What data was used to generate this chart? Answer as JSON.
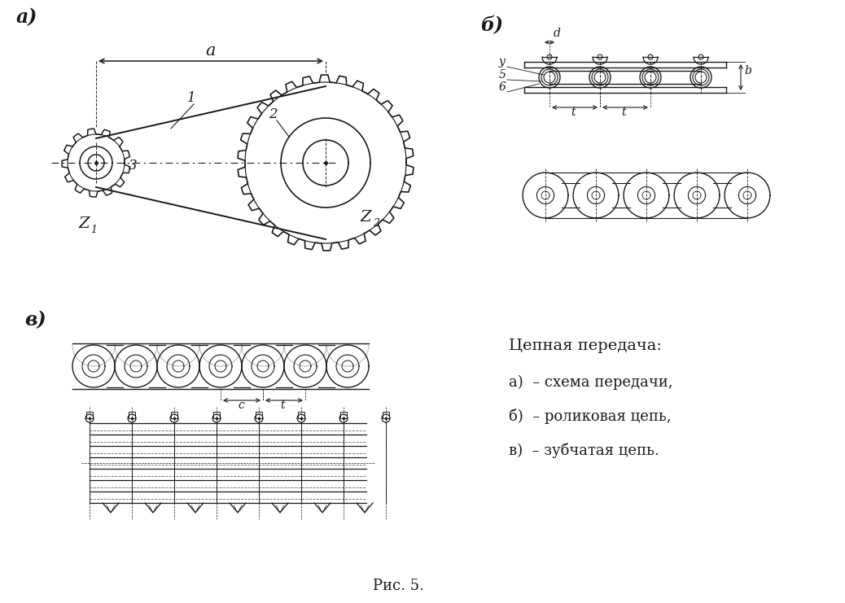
{
  "background_color": "#ffffff",
  "title_caption": "Рис. 5.",
  "legend_title": "Цепная передача:",
  "legend_items": [
    "а)  – схема передачи,",
    "б)  – роликовая цепь,",
    "в)  – зубчатая цепь."
  ],
  "labels": {
    "panel_a": "а)",
    "panel_b": "б)",
    "panel_v": "в)",
    "z1": "Z",
    "z2": "Z",
    "sub1": "1",
    "sub2": "2",
    "a_label": "a",
    "num1": "1",
    "num2": "2",
    "num3": "3",
    "d_label": "d",
    "y_label": "y",
    "num5": "5",
    "num6": "6",
    "b_label": "b",
    "t_label": "t",
    "c_label": "c"
  },
  "line_color": "#1a1a1a",
  "gray_color": "#888888"
}
